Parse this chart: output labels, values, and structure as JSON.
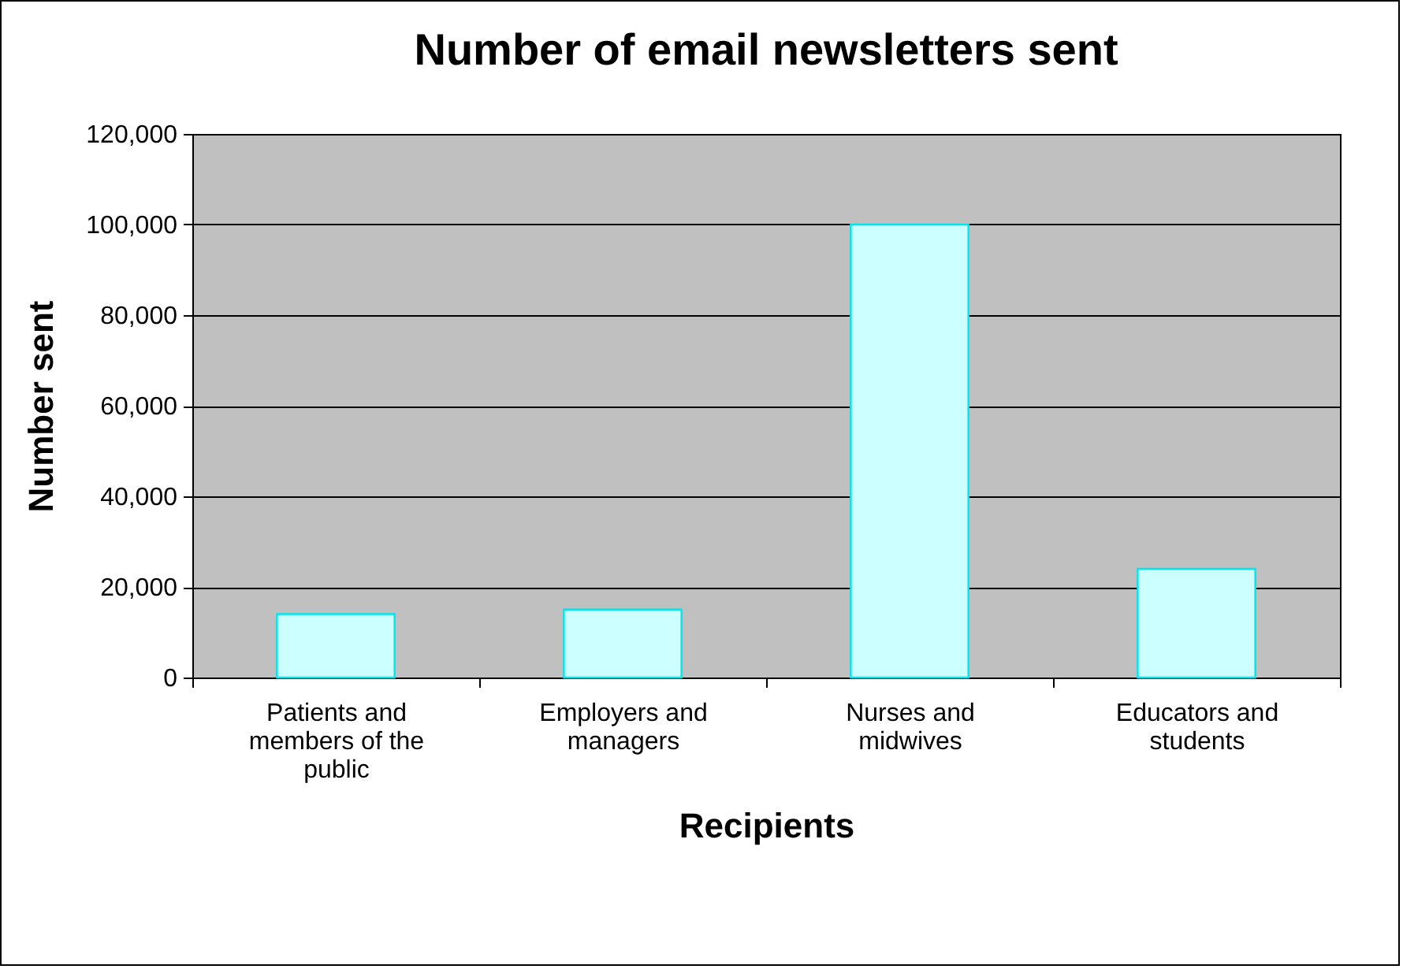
{
  "chart_data": {
    "type": "bar",
    "title": "Number of email newsletters sent",
    "xlabel": "Recipients",
    "ylabel": "Number sent",
    "categories": [
      "Patients and members of the public",
      "Employers and managers",
      "Nurses and midwives",
      "Educators and students"
    ],
    "values": [
      14000,
      15000,
      100000,
      24000
    ],
    "color": "#ccffff",
    "ylim": [
      0,
      120000
    ],
    "yticks": [
      {
        "value": 0,
        "label": "0"
      },
      {
        "value": 20000,
        "label": "20,000"
      },
      {
        "value": 40000,
        "label": "40,000"
      },
      {
        "value": 60000,
        "label": "60,000"
      },
      {
        "value": 80000,
        "label": "80,000"
      },
      {
        "value": 100000,
        "label": "100,000"
      },
      {
        "value": 120000,
        "label": "120,000"
      }
    ],
    "grid": "y"
  }
}
